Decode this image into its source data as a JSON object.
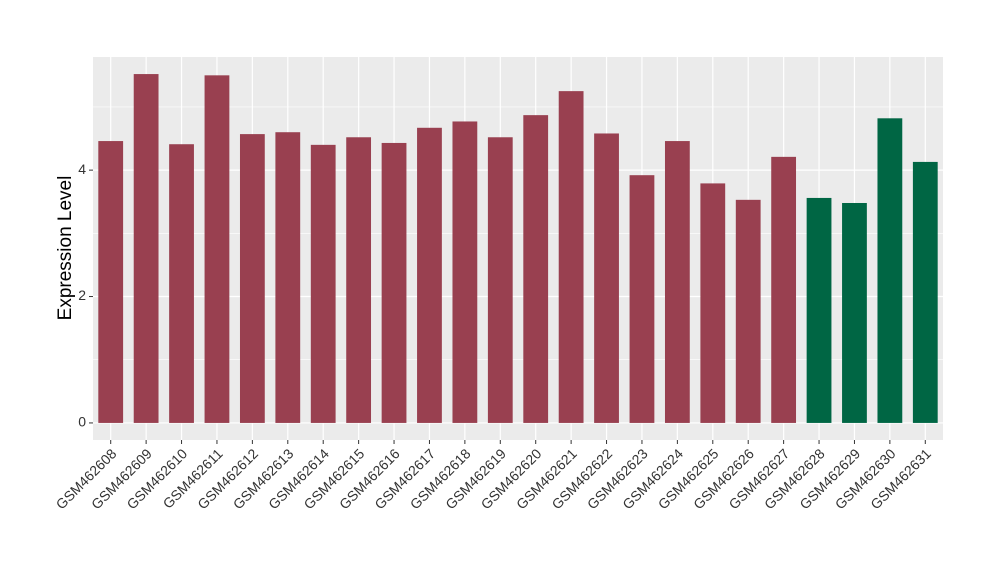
{
  "chart_data": {
    "type": "bar",
    "y_label": "Expression Level",
    "categories": [
      "GSM462608",
      "GSM462609",
      "GSM462610",
      "GSM462611",
      "GSM462612",
      "GSM462613",
      "GSM462614",
      "GSM462615",
      "GSM462616",
      "GSM462617",
      "GSM462618",
      "GSM462619",
      "GSM462620",
      "GSM462621",
      "GSM462622",
      "GSM462623",
      "GSM462624",
      "GSM462625",
      "GSM462626",
      "GSM462627",
      "GSM462628",
      "GSM462629",
      "GSM462630",
      "GSM462631"
    ],
    "values": [
      4.46,
      5.52,
      4.41,
      5.5,
      4.57,
      4.6,
      4.4,
      4.52,
      4.43,
      4.67,
      4.77,
      4.52,
      4.87,
      5.25,
      4.58,
      3.92,
      4.46,
      3.79,
      3.53,
      4.21,
      3.56,
      3.48,
      4.82,
      4.13
    ],
    "colors": [
      "#994050",
      "#994050",
      "#994050",
      "#994050",
      "#994050",
      "#994050",
      "#994050",
      "#994050",
      "#994050",
      "#994050",
      "#994050",
      "#994050",
      "#994050",
      "#994050",
      "#994050",
      "#994050",
      "#994050",
      "#994050",
      "#994050",
      "#994050",
      "#006644",
      "#006644",
      "#006644",
      "#006644"
    ],
    "ylim": [
      -0.27,
      5.79
    ],
    "yticks": [
      0,
      2,
      4
    ],
    "grid": true
  }
}
